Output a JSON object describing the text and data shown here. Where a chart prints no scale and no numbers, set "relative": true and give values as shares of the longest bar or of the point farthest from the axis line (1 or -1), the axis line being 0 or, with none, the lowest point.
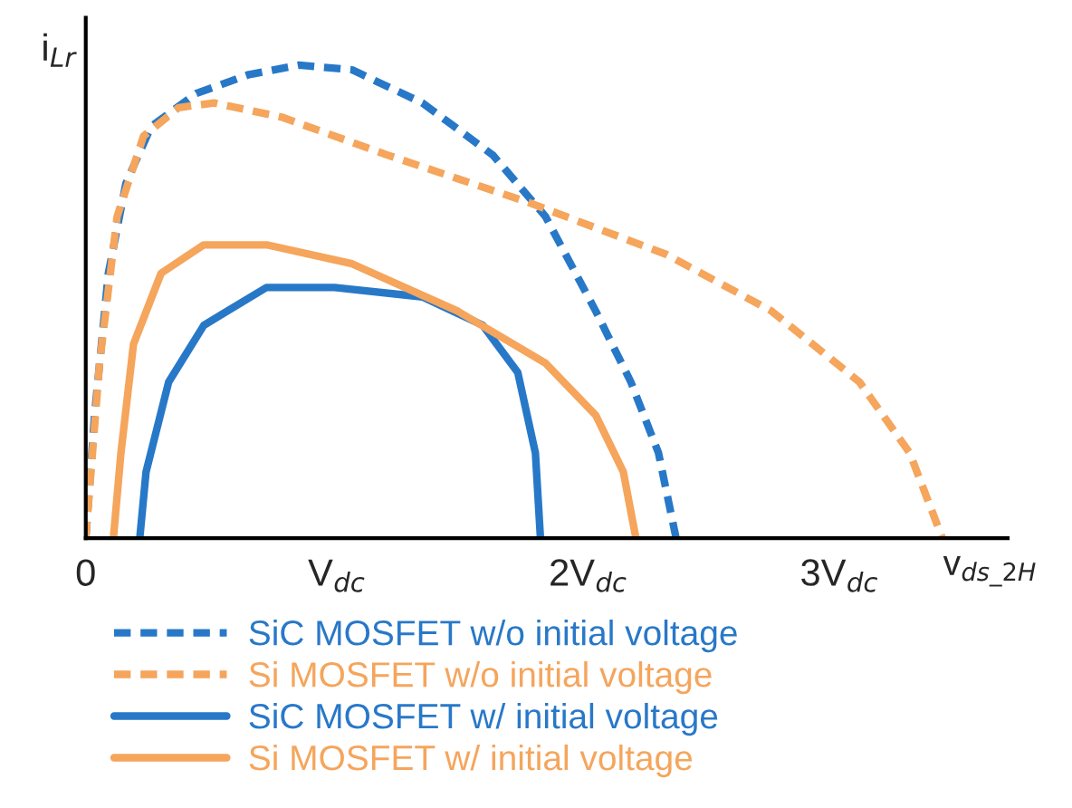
{
  "chart_data": {
    "type": "line",
    "relative": true,
    "xlabel": "v$_{ds_2H}$",
    "ylabel": "i$_{Lr}$",
    "xlim": [
      0,
      3.67
    ],
    "xticks": [
      0,
      {
        "value": 1,
        "label": "V$_{dc}$"
      },
      {
        "value": 2,
        "label": "2V$_{dc}$"
      },
      {
        "value": 3,
        "label": "3V$_{dc}$"
      }
    ],
    "legend": "bottom",
    "grid": false,
    "marker": "none",
    "series": [
      {
        "name": "SiC MOSFET w/o initial voltage",
        "color": "#2878c8",
        "line_style": "dashed",
        "x": [
          0,
          0.035,
          0.09,
          0.16,
          0.26,
          0.44,
          0.65,
          0.85,
          1.06,
          1.34,
          1.62,
          1.83,
          2.03,
          2.17,
          2.28,
          2.35
        ],
        "values": [
          0,
          0.26,
          0.56,
          0.75,
          0.87,
          0.94,
          0.98,
          1.0,
          0.99,
          0.92,
          0.81,
          0.68,
          0.48,
          0.33,
          0.18,
          0
        ]
      },
      {
        "name": "Si MOSFET w/o initial voltage",
        "color": "#f5a55c",
        "line_style": "dashed",
        "x": [
          0,
          0.055,
          0.125,
          0.23,
          0.37,
          0.51,
          0.78,
          1.2,
          1.76,
          2.31,
          2.73,
          3.08,
          3.28,
          3.41
        ],
        "values": [
          0,
          0.37,
          0.68,
          0.85,
          0.91,
          0.92,
          0.89,
          0.81,
          0.71,
          0.6,
          0.48,
          0.33,
          0.18,
          0
        ]
      },
      {
        "name": "SiC MOSFET w/ initial voltage",
        "color": "#2878c8",
        "line_style": "solid",
        "x": [
          0.215,
          0.24,
          0.33,
          0.47,
          0.72,
          0.99,
          1.34,
          1.58,
          1.72,
          1.79,
          1.81
        ],
        "values": [
          0,
          0.14,
          0.33,
          0.45,
          0.53,
          0.53,
          0.51,
          0.45,
          0.35,
          0.18,
          0
        ]
      },
      {
        "name": "Si MOSFET w/ initial voltage",
        "color": "#f5a55c",
        "line_style": "solid",
        "x": [
          0.11,
          0.14,
          0.19,
          0.3,
          0.47,
          0.72,
          1.06,
          1.48,
          1.83,
          2.03,
          2.14,
          2.19
        ],
        "values": [
          0,
          0.18,
          0.41,
          0.56,
          0.62,
          0.62,
          0.58,
          0.48,
          0.37,
          0.26,
          0.14,
          0
        ]
      }
    ]
  }
}
